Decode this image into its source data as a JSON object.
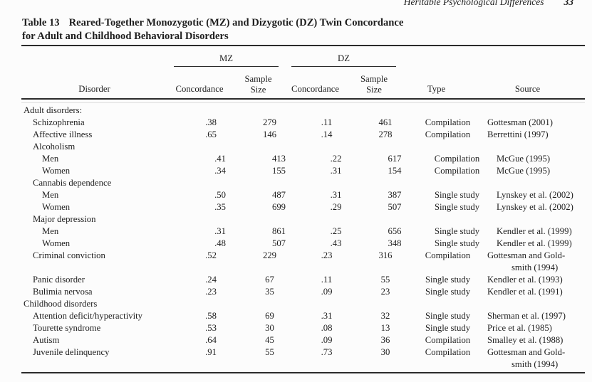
{
  "page": {
    "running_head": "Heritable Psychological Differences",
    "page_number": "33"
  },
  "colors": {
    "background": "#fcfcfc",
    "text": "#1e1e1e",
    "rule": "#2b2b2b"
  },
  "table": {
    "label": "Table 13",
    "title_line1": "Reared-Together Monozygotic (MZ) and Dizygotic (DZ) Twin Concordance",
    "title_line2": "for Adult and Childhood Behavioral Disorders",
    "groups": {
      "mz": "MZ",
      "dz": "DZ"
    },
    "columns": {
      "disorder": "Disorder",
      "concordance": "Concordance",
      "sample_line1": "Sample",
      "sample_line2": "Size",
      "type": "Type",
      "source": "Source"
    },
    "rows": [
      {
        "indent": 0,
        "label": "Adult disorders:"
      },
      {
        "indent": 1,
        "label": "Schizophrenia",
        "mz_concordance": ".38",
        "mz_sample_size": "279",
        "dz_concordance": ".11",
        "dz_sample_size": "461",
        "type": "Compilation",
        "source": "Gottesman (2001)"
      },
      {
        "indent": 1,
        "label": "Affective illness",
        "mz_concordance": ".65",
        "mz_sample_size": "146",
        "dz_concordance": ".14",
        "dz_sample_size": "278",
        "type": "Compilation",
        "source": "Berrettini (1997)"
      },
      {
        "indent": 1,
        "label": "Alcoholism"
      },
      {
        "indent": 2,
        "label": "Men",
        "mz_concordance": ".41",
        "mz_sample_size": "413",
        "dz_concordance": ".22",
        "dz_sample_size": "617",
        "type": "Compilation",
        "source": "McGue (1995)"
      },
      {
        "indent": 2,
        "label": "Women",
        "mz_concordance": ".34",
        "mz_sample_size": "155",
        "dz_concordance": ".31",
        "dz_sample_size": "154",
        "type": "Compilation",
        "source": "McGue (1995)"
      },
      {
        "indent": 1,
        "label": "Cannabis dependence"
      },
      {
        "indent": 2,
        "label": "Men",
        "mz_concordance": ".50",
        "mz_sample_size": "487",
        "dz_concordance": ".31",
        "dz_sample_size": "387",
        "type": "Single study",
        "source": "Lynskey et al. (2002)"
      },
      {
        "indent": 2,
        "label": "Women",
        "mz_concordance": ".35",
        "mz_sample_size": "699",
        "dz_concordance": ".29",
        "dz_sample_size": "507",
        "type": "Single study",
        "source": "Lynskey et al. (2002)"
      },
      {
        "indent": 1,
        "label": "Major depression"
      },
      {
        "indent": 2,
        "label": "Men",
        "mz_concordance": ".31",
        "mz_sample_size": "861",
        "dz_concordance": ".25",
        "dz_sample_size": "656",
        "type": "Single study",
        "source": "Kendler et al. (1999)"
      },
      {
        "indent": 2,
        "label": "Women",
        "mz_concordance": ".48",
        "mz_sample_size": "507",
        "dz_concordance": ".43",
        "dz_sample_size": "348",
        "type": "Single study",
        "source": "Kendler et al. (1999)"
      },
      {
        "indent": 1,
        "label": "Criminal conviction",
        "mz_concordance": ".52",
        "mz_sample_size": "229",
        "dz_concordance": ".23",
        "dz_sample_size": "316",
        "type": "Compilation",
        "source": "Gottesman and Gold-",
        "source_line2": "smith (1994)"
      },
      {
        "indent": 1,
        "label": "Panic disorder",
        "mz_concordance": ".24",
        "mz_sample_size": "67",
        "dz_concordance": ".11",
        "dz_sample_size": "55",
        "type": "Single study",
        "source": "Kendler et al. (1993)"
      },
      {
        "indent": 1,
        "label": "Bulimia nervosa",
        "mz_concordance": ".23",
        "mz_sample_size": "35",
        "dz_concordance": ".09",
        "dz_sample_size": "23",
        "type": "Single study",
        "source": "Kendler et al. (1991)"
      },
      {
        "indent": 0,
        "label": "Childhood disorders"
      },
      {
        "indent": 1,
        "label": "Attention deficit/hyperactivity",
        "mz_concordance": ".58",
        "mz_sample_size": "69",
        "dz_concordance": ".31",
        "dz_sample_size": "32",
        "type": "Single study",
        "source": "Sherman et al. (1997)"
      },
      {
        "indent": 1,
        "label": "Tourette syndrome",
        "mz_concordance": ".53",
        "mz_sample_size": "30",
        "dz_concordance": ".08",
        "dz_sample_size": "13",
        "type": "Single study",
        "source": "Price et al. (1985)"
      },
      {
        "indent": 1,
        "label": "Autism",
        "mz_concordance": ".64",
        "mz_sample_size": "45",
        "dz_concordance": ".09",
        "dz_sample_size": "36",
        "type": "Compilation",
        "source": "Smalley et al. (1988)"
      },
      {
        "indent": 1,
        "label": "Juvenile delinquency",
        "mz_concordance": ".91",
        "mz_sample_size": "55",
        "dz_concordance": ".73",
        "dz_sample_size": "30",
        "type": "Compilation",
        "source": "Gottesman and Gold-",
        "source_line2": "smith (1994)"
      }
    ]
  }
}
